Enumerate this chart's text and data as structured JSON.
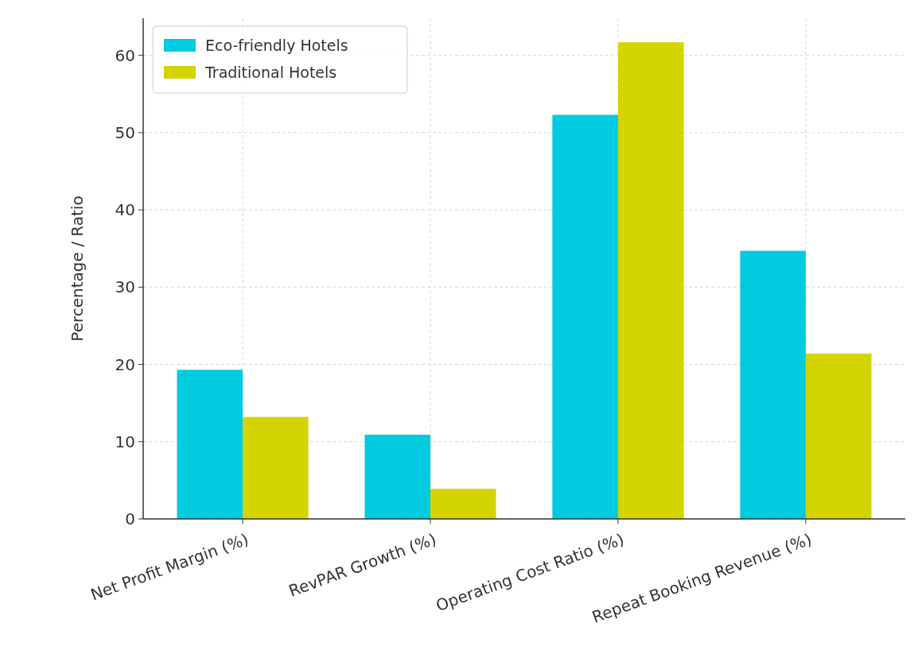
{
  "chart_data": {
    "type": "bar",
    "ylabel": "Percentage / Ratio",
    "categories": [
      "Net Profit Margin (%)",
      "RevPAR Growth (%)",
      "Operating Cost Ratio (%)",
      "Repeat Booking Revenue (%)"
    ],
    "series": [
      {
        "name": "Eco-friendly Hotels",
        "color": "#00cbe0",
        "values": [
          19.3,
          10.9,
          52.3,
          34.7
        ]
      },
      {
        "name": "Traditional Hotels",
        "color": "#d4d400",
        "values": [
          13.2,
          3.9,
          61.7,
          21.4
        ]
      }
    ],
    "ylim": [
      0,
      64.8
    ],
    "yticks": [
      0,
      10,
      20,
      30,
      40,
      50,
      60
    ],
    "grid": true,
    "legend": "top left"
  }
}
